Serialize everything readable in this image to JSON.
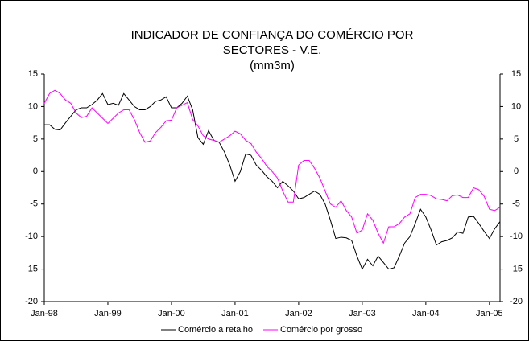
{
  "chart_data": {
    "type": "line",
    "title": [
      "INDICADOR DE CONFIANÇA DO COMÉRCIO POR",
      "SECTORES - V.E.",
      "(mm3m)"
    ],
    "categories": [
      "Jan-98",
      null,
      null,
      null,
      null,
      null,
      null,
      null,
      null,
      null,
      null,
      null,
      "Jan-99",
      null,
      null,
      null,
      null,
      null,
      null,
      null,
      null,
      null,
      null,
      null,
      "Jan-00",
      null,
      null,
      null,
      null,
      null,
      null,
      null,
      null,
      null,
      null,
      null,
      "Jan-01",
      null,
      null,
      null,
      null,
      null,
      null,
      null,
      null,
      null,
      null,
      null,
      "Jan-02",
      null,
      null,
      null,
      null,
      null,
      null,
      null,
      null,
      null,
      null,
      null,
      "Jan-03",
      null,
      null,
      null,
      null,
      null,
      null,
      null,
      null,
      null,
      null,
      null,
      "Jan-04",
      null,
      null,
      null,
      null,
      null,
      null,
      null,
      null,
      null,
      null,
      null,
      "Jan-05",
      null,
      null
    ],
    "series": [
      {
        "name": "Comércio a retalho",
        "color": "#000000",
        "values": [
          7.2,
          7.2,
          6.5,
          6.4,
          7.5,
          8.5,
          9.5,
          9.8,
          9.8,
          10.3,
          11,
          12,
          10.3,
          10.5,
          10.2,
          12,
          11,
          10,
          9.5,
          9.5,
          10,
          10.8,
          11,
          11.5,
          9.8,
          9.8,
          10.5,
          11.6,
          9.5,
          5.2,
          4.2,
          6.3,
          4.8,
          4.5,
          3,
          1,
          -1.5,
          0,
          2.7,
          2.5,
          1,
          0.2,
          -0.8,
          -1.5,
          -2.5,
          -1.5,
          -2.2,
          -3,
          -4.2,
          -4,
          -3.5,
          -3,
          -3.5,
          -5,
          -7.5,
          -10.3,
          -10.1,
          -10.2,
          -10.6,
          -13,
          -15,
          -13.5,
          -14.5,
          -13,
          -14,
          -15,
          -14.8,
          -13,
          -11,
          -10,
          -8,
          -5.8,
          -7,
          -9,
          -11.3,
          -10.8,
          -10.6,
          -10.2,
          -9.3,
          -9.5,
          -7,
          -6.9,
          -8,
          -9.2,
          -10.3,
          -8.8,
          -7.7
        ]
      },
      {
        "name": "Comércio por grosso",
        "color": "#ff00ff",
        "values": [
          10.5,
          12,
          12.5,
          12,
          11,
          10.5,
          9,
          8.3,
          8.5,
          9.8,
          9,
          8.2,
          7.4,
          8.2,
          9,
          9.5,
          9.5,
          8,
          6,
          4.5,
          4.7,
          6,
          6.8,
          7.8,
          7.9,
          9.8,
          10.2,
          10.6,
          8,
          7,
          5.5,
          5,
          4.8,
          4.5,
          5,
          5.5,
          6.2,
          5.8,
          4.8,
          4.3,
          3,
          2,
          0.8,
          0,
          -1,
          -3,
          -4.7,
          -4.7,
          1,
          1.7,
          1.7,
          0.5,
          -1,
          -3,
          -5,
          -5.5,
          -4.5,
          -6,
          -7,
          -9.5,
          -9,
          -6.5,
          -7.5,
          -9.5,
          -11,
          -8.5,
          -8.5,
          -8,
          -7,
          -6.5,
          -4,
          -3.5,
          -3.5,
          -3.7,
          -4.2,
          -4.3,
          -4.5,
          -3.7,
          -3.6,
          -4,
          -4,
          -2.5,
          -2.8,
          -3.8,
          -5.8,
          -6,
          -5.5
        ]
      }
    ],
    "ylim": [
      -20,
      15
    ],
    "yticks": [
      -20,
      -15,
      -10,
      -5,
      0,
      5,
      10,
      15
    ],
    "y2lim": [
      -20,
      15
    ],
    "y2ticks": [
      -20,
      -15,
      -10,
      -5,
      0,
      5,
      10,
      15
    ],
    "grid": false,
    "legend": "bottom"
  }
}
